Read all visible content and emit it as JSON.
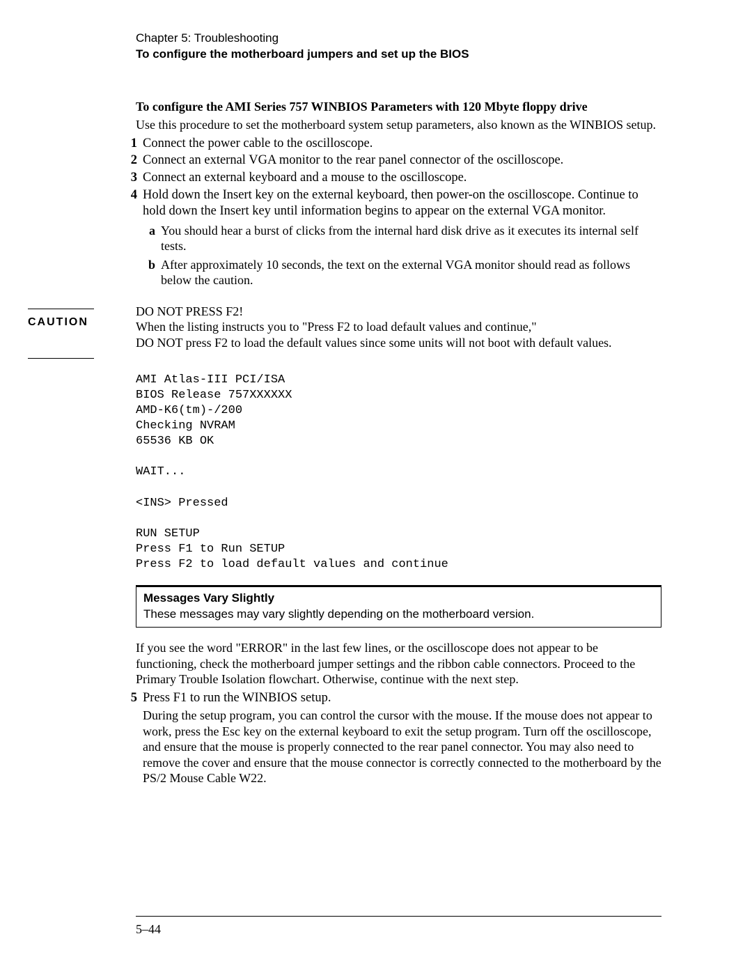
{
  "header": {
    "chapter": "Chapter 5: Troubleshooting",
    "section": "To configure the motherboard jumpers and set up the BIOS"
  },
  "subheading": "To configure the AMI Series 757 WINBIOS Parameters with 120 Mbyte floppy drive",
  "intro": "Use this procedure to set the motherboard system setup parameters, also known as the WINBIOS setup.",
  "steps": {
    "s1": "Connect the power cable to the oscilloscope.",
    "s2": "Connect an external VGA monitor to the rear panel connector of the oscilloscope.",
    "s3": "Connect an external keyboard and a mouse to the oscilloscope.",
    "s4": "Hold down the Insert key on the external keyboard, then power-on the oscilloscope. Continue to hold down the Insert key until information begins to appear on the external VGA monitor.",
    "s4a": "You should hear a burst of clicks from the internal hard disk drive as it executes its internal self tests.",
    "s4b": "After approximately 10 seconds, the text on the external VGA monitor should read as follows below the caution."
  },
  "caution": {
    "label": "CAUTION",
    "line1": "DO NOT PRESS F2!",
    "line2": "When the listing instructs you to \"Press F2 to load default values and continue,\"",
    "line3": "DO NOT press F2 to load the default values since some units will not boot with default values."
  },
  "mono": "AMI Atlas-III PCI/ISA\nBIOS Release 757XXXXXX\nAMD-K6(tm)-/200\nChecking NVRAM\n65536 KB OK\n\nWAIT...\n\n<INS> Pressed\n\nRUN SETUP\nPress F1 to Run SETUP\nPress F2 to load default values and continue",
  "note": {
    "title": "Messages Vary Slightly",
    "body": "These messages may vary slightly depending on the motherboard version."
  },
  "after_note": "If you see the word \"ERROR\" in the last few lines, or the oscilloscope does not appear to be functioning, check the motherboard jumper settings and the ribbon cable connectors. Proceed to the Primary Trouble Isolation flowchart. Otherwise, continue with the next step.",
  "step5": {
    "title": "Press F1 to run the WINBIOS setup.",
    "body": "During the setup program, you can control the cursor with the mouse. If the mouse does not appear to work, press the Esc key on the external keyboard to exit the setup program. Turn off the oscilloscope, and ensure that the mouse is properly connected to the rear panel connector. You may also need to remove the cover and ensure that the mouse connector is correctly connected to the motherboard by the PS/2 Mouse Cable W22."
  },
  "pagenum": "5–44"
}
